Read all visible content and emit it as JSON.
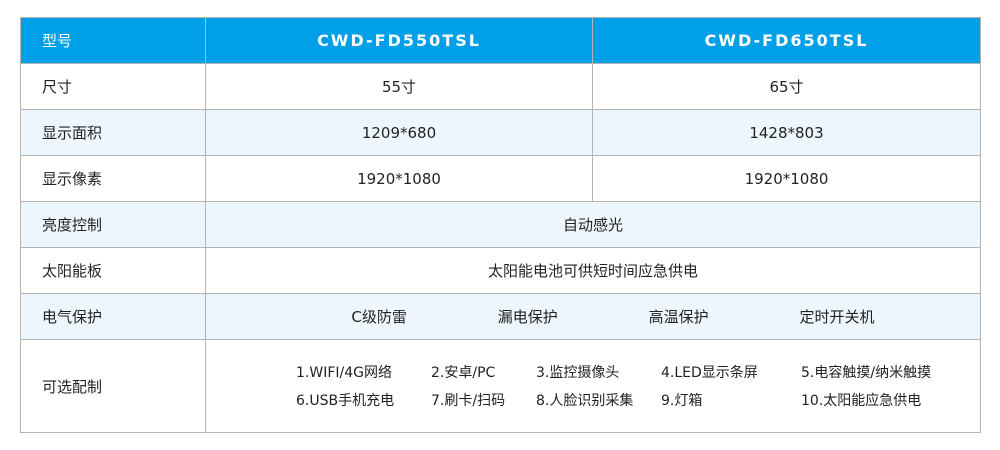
{
  "header": {
    "label": "型号",
    "models": [
      "CWD-FD550TSL",
      "CWD-FD650TSL"
    ]
  },
  "rows": [
    {
      "label": "尺寸",
      "values": [
        "55寸",
        "65寸"
      ]
    },
    {
      "label": "显示面积",
      "values": [
        "1209*680",
        "1428*803"
      ]
    },
    {
      "label": "显示像素",
      "values": [
        "1920*1080",
        "1920*1080"
      ]
    },
    {
      "label": "亮度控制",
      "value": "自动感光"
    },
    {
      "label": "太阳能板",
      "value": "太阳能电池可供短时间应急供电"
    },
    {
      "label": "电气保护",
      "items": [
        "C级防雷",
        "漏电保护",
        "高温保护",
        "定时开关机"
      ]
    },
    {
      "label": "可选配制",
      "items": [
        "1.WIFI/4G网络",
        "2.安卓/PC",
        "3.监控摄像头",
        "4.LED显示条屏",
        "5.电容触摸/纳米触摸",
        "6.USB手机充电",
        "7.刷卡/扫码",
        "8.人脸识别采集",
        "9.灯箱",
        "10.太阳能应急供电"
      ]
    }
  ],
  "colors": {
    "header": "#00a0e9",
    "alt_row": "#eef6fd"
  }
}
